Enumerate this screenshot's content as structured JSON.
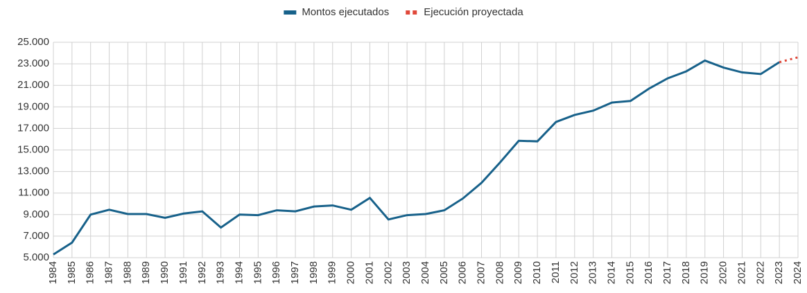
{
  "chart_data": {
    "type": "line",
    "x": [
      1984,
      1985,
      1986,
      1987,
      1988,
      1989,
      1990,
      1991,
      1992,
      1993,
      1994,
      1995,
      1996,
      1997,
      1998,
      1999,
      2000,
      2001,
      2002,
      2003,
      2004,
      2005,
      2006,
      2007,
      2008,
      2009,
      2010,
      2011,
      2012,
      2013,
      2014,
      2015,
      2016,
      2017,
      2018,
      2019,
      2020,
      2021,
      2022,
      2023,
      2024
    ],
    "xlim": [
      1984,
      2024
    ],
    "xticks": [
      1984,
      1985,
      1986,
      1987,
      1988,
      1989,
      1990,
      1991,
      1992,
      1993,
      1994,
      1995,
      1996,
      1997,
      1998,
      1999,
      2000,
      2001,
      2002,
      2003,
      2004,
      2005,
      2006,
      2007,
      2008,
      2009,
      2010,
      2011,
      2012,
      2013,
      2014,
      2015,
      2016,
      2017,
      2018,
      2019,
      2020,
      2021,
      2022,
      2023,
      2024
    ],
    "ylim": [
      5000,
      25000
    ],
    "yticks": [
      {
        "value": 5000,
        "label": "5.000"
      },
      {
        "value": 7000,
        "label": "7.000"
      },
      {
        "value": 9000,
        "label": "9.000"
      },
      {
        "value": 11000,
        "label": "11.000"
      },
      {
        "value": 13000,
        "label": "13.000"
      },
      {
        "value": 15000,
        "label": "15.000"
      },
      {
        "value": 17000,
        "label": "17.000"
      },
      {
        "value": 19000,
        "label": "19.000"
      },
      {
        "value": 21000,
        "label": "21.000"
      },
      {
        "value": 23000,
        "label": "23.000"
      },
      {
        "value": 25000,
        "label": "25.000"
      }
    ],
    "grid": true,
    "legend": "top",
    "series": [
      {
        "name": "Montos ejecutados",
        "color": "#17618a",
        "dashed": false,
        "values": [
          5300,
          6400,
          9000,
          9450,
          9050,
          9050,
          8700,
          9100,
          9300,
          7800,
          9000,
          8950,
          9400,
          9300,
          9750,
          9850,
          9450,
          10550,
          8550,
          8950,
          9050,
          9400,
          10500,
          11950,
          13850,
          15850,
          15800,
          17600,
          18250,
          18650,
          19400,
          19550,
          20700,
          21650,
          22300,
          23300,
          22650,
          22200,
          22050,
          23150,
          null
        ]
      },
      {
        "name": "Ejecución proyectada",
        "color": "#e0483a",
        "dashed": true,
        "values": [
          null,
          null,
          null,
          null,
          null,
          null,
          null,
          null,
          null,
          null,
          null,
          null,
          null,
          null,
          null,
          null,
          null,
          null,
          null,
          null,
          null,
          null,
          null,
          null,
          null,
          null,
          null,
          null,
          null,
          null,
          null,
          null,
          null,
          null,
          null,
          null,
          null,
          null,
          null,
          23150,
          23600
        ]
      }
    ]
  }
}
